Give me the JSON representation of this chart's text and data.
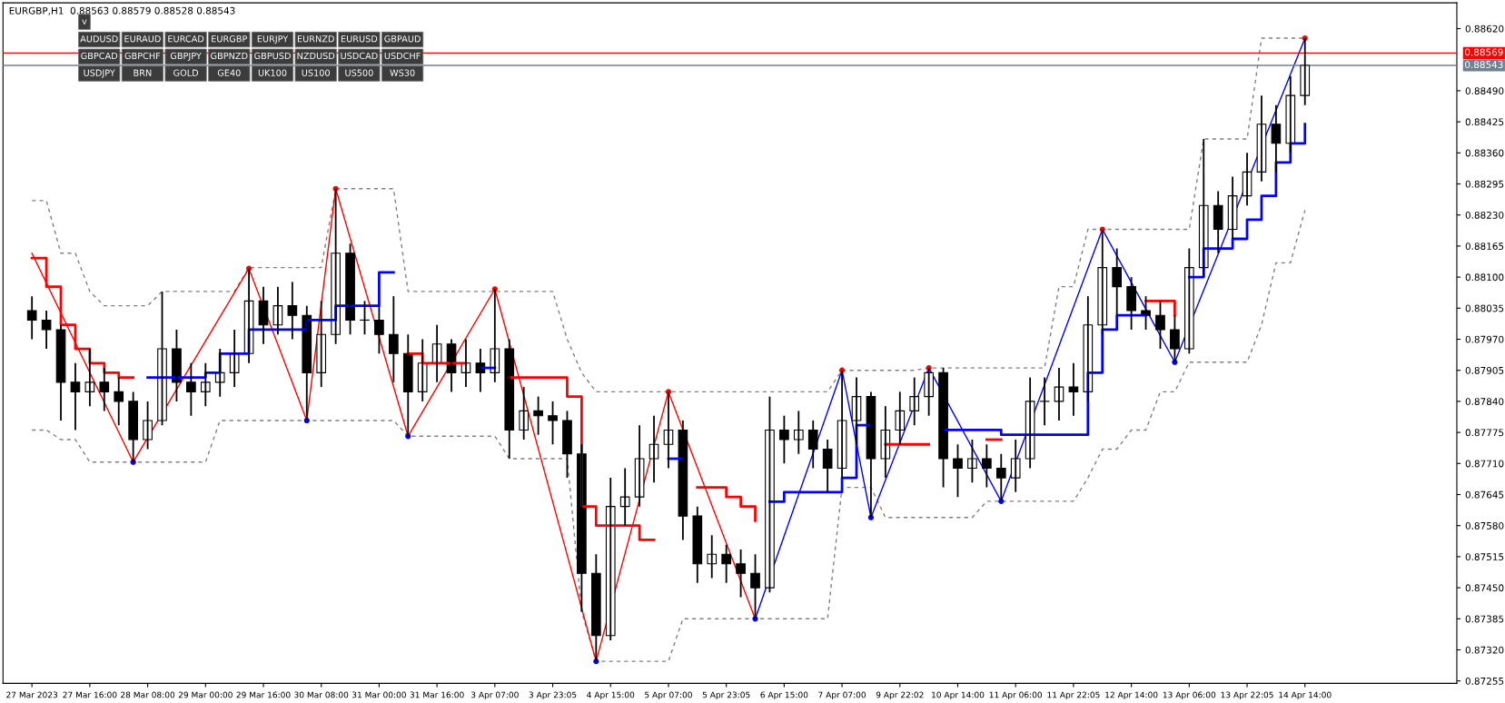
{
  "chart_data": {
    "type": "candlestick",
    "title": "EURGBP,H1  0.88563 0.88579 0.88528 0.88543",
    "categories": [
      "27 Mar 2023",
      null,
      null,
      null,
      "27 Mar 16:00",
      null,
      null,
      null,
      "28 Mar 08:00",
      null,
      null,
      null,
      "29 Mar 00:00",
      null,
      null,
      null,
      "29 Mar 16:00",
      null,
      null,
      null,
      "30 Mar 08:00",
      null,
      null,
      null,
      "31 Mar 00:00",
      null,
      null,
      null,
      "31 Mar 16:00",
      null,
      null,
      null,
      "3 Apr 07:00",
      null,
      null,
      null,
      "3 Apr 23:05",
      null,
      null,
      null,
      "4 Apr 15:00",
      null,
      null,
      null,
      "5 Apr 07:00",
      null,
      null,
      null,
      "5 Apr 23:05",
      null,
      null,
      null,
      "6 Apr 15:00",
      null,
      null,
      null,
      "7 Apr 07:00",
      null,
      null,
      null,
      "9 Apr 22:02",
      null,
      null,
      null,
      "10 Apr 14:00",
      null,
      null,
      null,
      "11 Apr 06:00",
      null,
      null,
      null,
      "11 Apr 22:05",
      null,
      null,
      null,
      "12 Apr 14:00",
      null,
      null,
      null,
      "13 Apr 06:00",
      null,
      null,
      null,
      "13 Apr 22:05",
      null,
      null,
      null,
      "14 Apr 14:00"
    ],
    "ohlc": [
      [
        0.8803,
        0.8806,
        0.8797,
        0.8801
      ],
      [
        0.8801,
        0.8803,
        0.8795,
        0.8799
      ],
      [
        0.8799,
        0.88,
        0.878,
        0.8788
      ],
      [
        0.8788,
        0.8792,
        0.8778,
        0.8786
      ],
      [
        0.8786,
        0.8795,
        0.8783,
        0.8788
      ],
      [
        0.8788,
        0.8791,
        0.8782,
        0.8786
      ],
      [
        0.8786,
        0.8789,
        0.8779,
        0.8784
      ],
      [
        0.8784,
        0.8786,
        0.87713,
        0.8776
      ],
      [
        0.8776,
        0.8784,
        0.8774,
        0.878
      ],
      [
        0.878,
        0.8807,
        0.8779,
        0.8795
      ],
      [
        0.8795,
        0.8799,
        0.8784,
        0.8788
      ],
      [
        0.8788,
        0.8792,
        0.8781,
        0.8786
      ],
      [
        0.8786,
        0.8792,
        0.8783,
        0.8788
      ],
      [
        0.8788,
        0.8795,
        0.8785,
        0.879
      ],
      [
        0.879,
        0.8799,
        0.8787,
        0.8794
      ],
      [
        0.8794,
        0.88118,
        0.8792,
        0.8805
      ],
      [
        0.8805,
        0.8808,
        0.8796,
        0.88
      ],
      [
        0.88,
        0.8808,
        0.8798,
        0.8804
      ],
      [
        0.8804,
        0.8809,
        0.8797,
        0.8802
      ],
      [
        0.8802,
        0.8804,
        0.878,
        0.879
      ],
      [
        0.879,
        0.8805,
        0.8787,
        0.8798
      ],
      [
        0.8798,
        0.88285,
        0.8796,
        0.8815
      ],
      [
        0.8815,
        0.8817,
        0.8798,
        0.8801
      ],
      [
        0.8801,
        0.8805,
        0.8798,
        0.8801
      ],
      [
        0.8801,
        0.8804,
        0.8794,
        0.8798
      ],
      [
        0.8798,
        0.8806,
        0.8788,
        0.8794
      ],
      [
        0.8794,
        0.8798,
        0.87767,
        0.8786
      ],
      [
        0.8786,
        0.8797,
        0.8784,
        0.8792
      ],
      [
        0.8792,
        0.88,
        0.8788,
        0.8796
      ],
      [
        0.8796,
        0.8797,
        0.8786,
        0.879
      ],
      [
        0.879,
        0.8797,
        0.8787,
        0.8792
      ],
      [
        0.8792,
        0.8795,
        0.8786,
        0.879
      ],
      [
        0.879,
        0.88075,
        0.8788,
        0.8795
      ],
      [
        0.8795,
        0.8797,
        0.8772,
        0.8778
      ],
      [
        0.8778,
        0.8787,
        0.8776,
        0.8782
      ],
      [
        0.8782,
        0.8785,
        0.8777,
        0.8781
      ],
      [
        0.8781,
        0.8784,
        0.8775,
        0.878
      ],
      [
        0.878,
        0.8782,
        0.8768,
        0.8773
      ],
      [
        0.8773,
        0.8775,
        0.874,
        0.8748
      ],
      [
        0.8748,
        0.8752,
        0.87296,
        0.8735
      ],
      [
        0.8735,
        0.8768,
        0.8734,
        0.8762
      ],
      [
        0.8762,
        0.877,
        0.8758,
        0.8764
      ],
      [
        0.8764,
        0.8779,
        0.8762,
        0.8772
      ],
      [
        0.8772,
        0.8781,
        0.8767,
        0.8775
      ],
      [
        0.8775,
        0.8786,
        0.877,
        0.8778
      ],
      [
        0.8778,
        0.878,
        0.8755,
        0.876
      ],
      [
        0.876,
        0.8762,
        0.8746,
        0.875
      ],
      [
        0.875,
        0.8756,
        0.8747,
        0.8752
      ],
      [
        0.8752,
        0.8754,
        0.8746,
        0.875
      ],
      [
        0.875,
        0.8753,
        0.8743,
        0.8748
      ],
      [
        0.8748,
        0.8752,
        0.87385,
        0.8745
      ],
      [
        0.8745,
        0.8785,
        0.8744,
        0.8778
      ],
      [
        0.8778,
        0.8781,
        0.8771,
        0.8776
      ],
      [
        0.8776,
        0.8782,
        0.8773,
        0.8778
      ],
      [
        0.8778,
        0.878,
        0.877,
        0.8774
      ],
      [
        0.8774,
        0.8776,
        0.8765,
        0.877
      ],
      [
        0.877,
        0.87905,
        0.8768,
        0.878
      ],
      [
        0.878,
        0.8789,
        0.8775,
        0.8785
      ],
      [
        0.8785,
        0.8786,
        0.87597,
        0.8772
      ],
      [
        0.8772,
        0.8783,
        0.8768,
        0.8778
      ],
      [
        0.8778,
        0.8786,
        0.8775,
        0.8782
      ],
      [
        0.8782,
        0.8789,
        0.8779,
        0.8785
      ],
      [
        0.8785,
        0.8791,
        0.8781,
        0.879
      ],
      [
        0.879,
        0.8791,
        0.8766,
        0.8772
      ],
      [
        0.8772,
        0.8775,
        0.8764,
        0.877
      ],
      [
        0.877,
        0.8776,
        0.8767,
        0.8772
      ],
      [
        0.8772,
        0.8775,
        0.8766,
        0.877
      ],
      [
        0.877,
        0.8773,
        0.87631,
        0.8768
      ],
      [
        0.8768,
        0.8776,
        0.8765,
        0.8772
      ],
      [
        0.8772,
        0.8789,
        0.877,
        0.8784
      ],
      [
        0.8784,
        0.8789,
        0.8779,
        0.8784
      ],
      [
        0.8784,
        0.8791,
        0.878,
        0.8787
      ],
      [
        0.8787,
        0.8792,
        0.8781,
        0.8786
      ],
      [
        0.8786,
        0.8806,
        0.8784,
        0.88
      ],
      [
        0.88,
        0.882,
        0.8798,
        0.8812
      ],
      [
        0.8812,
        0.8816,
        0.8802,
        0.8808
      ],
      [
        0.8808,
        0.881,
        0.8799,
        0.8803
      ],
      [
        0.8803,
        0.8806,
        0.8799,
        0.8802
      ],
      [
        0.8802,
        0.8805,
        0.8795,
        0.8799
      ],
      [
        0.8799,
        0.8802,
        0.87922,
        0.8795
      ],
      [
        0.8795,
        0.8816,
        0.8794,
        0.8812
      ],
      [
        0.8812,
        0.88389,
        0.881,
        0.8825
      ],
      [
        0.8825,
        0.8828,
        0.8815,
        0.882
      ],
      [
        0.882,
        0.8831,
        0.8818,
        0.8827
      ],
      [
        0.8827,
        0.8836,
        0.8825,
        0.8832
      ],
      [
        0.8832,
        0.8848,
        0.883,
        0.8842
      ],
      [
        0.8842,
        0.8846,
        0.8832,
        0.8838
      ],
      [
        0.8838,
        0.8852,
        0.8836,
        0.8848
      ],
      [
        0.8848,
        0.886,
        0.8846,
        0.88543
      ]
    ],
    "series": [
      {
        "type": "step",
        "color": "#ff0000",
        "values": [
          0.8814,
          0.8808,
          0.88,
          0.8795,
          0.8792,
          0.879,
          0.8789,
          0.8789,
          null,
          null,
          null,
          null,
          null,
          null,
          null,
          null,
          null,
          null,
          null,
          null,
          null,
          null,
          null,
          null,
          null,
          null,
          0.8794,
          0.8792,
          0.8792,
          0.8792,
          0.8792,
          null,
          null,
          0.8789,
          0.8789,
          0.8789,
          0.8789,
          0.8785,
          0.8762,
          0.8758,
          0.8758,
          0.8758,
          0.8755,
          0.8755,
          null,
          null,
          0.8766,
          0.8766,
          0.8764,
          0.8762,
          0.8759,
          null,
          null,
          null,
          null,
          null,
          null,
          null,
          null,
          0.8775,
          0.8775,
          0.8775,
          0.8775,
          null,
          null,
          null,
          0.8776,
          0.8776,
          null,
          null,
          null,
          null,
          null,
          null,
          null,
          null,
          null,
          0.8805,
          0.8805,
          0.8802,
          null,
          null,
          null,
          null,
          null,
          null,
          null,
          null,
          null
        ]
      },
      {
        "type": "step",
        "color": "#0000ff",
        "values": [
          null,
          null,
          null,
          null,
          null,
          null,
          null,
          null,
          0.8789,
          0.8789,
          0.8789,
          0.8789,
          0.879,
          0.8794,
          0.8794,
          0.8799,
          0.8799,
          0.8799,
          0.8799,
          0.8801,
          0.8801,
          0.8804,
          0.8804,
          0.8804,
          0.8811,
          0.8811,
          null,
          null,
          null,
          null,
          null,
          0.8791,
          0.8791,
          null,
          null,
          null,
          null,
          null,
          null,
          null,
          null,
          null,
          null,
          null,
          0.8772,
          0.8772,
          null,
          null,
          null,
          null,
          null,
          0.8763,
          0.8765,
          0.8765,
          0.8765,
          0.8765,
          0.8768,
          0.8779,
          0.8779,
          null,
          null,
          null,
          null,
          0.8778,
          0.8778,
          0.8778,
          0.8778,
          0.8777,
          0.8777,
          0.8777,
          0.8777,
          0.8777,
          0.8777,
          0.879,
          0.8799,
          0.8802,
          0.8802,
          0.8802,
          null,
          null,
          0.881,
          0.8816,
          0.8816,
          0.8818,
          0.8822,
          0.8827,
          0.8834,
          0.8838,
          0.8842
        ]
      },
      {
        "type": "line",
        "line_style": "dashed",
        "color": "#808080",
        "values": [
          0.8826,
          0.8826,
          0.8815,
          0.8815,
          0.8807,
          0.8804,
          0.8804,
          0.8804,
          0.8804,
          0.8807,
          0.8807,
          0.8807,
          0.8807,
          0.8807,
          0.8807,
          0.8812,
          0.8812,
          0.8812,
          0.8812,
          0.8812,
          0.8812,
          0.88285,
          0.88285,
          0.88285,
          0.88285,
          0.88285,
          0.8807,
          0.8807,
          0.8807,
          0.8807,
          0.8807,
          0.8807,
          0.8807,
          0.8807,
          0.8807,
          0.8807,
          0.8807,
          0.8797,
          0.879,
          0.8786,
          0.8786,
          0.8786,
          0.8786,
          0.8786,
          0.8786,
          0.8786,
          0.8786,
          0.8786,
          0.8786,
          0.8786,
          0.8786,
          0.8786,
          0.8786,
          0.8786,
          0.8786,
          0.8786,
          0.87905,
          0.87905,
          0.87905,
          0.87905,
          0.87905,
          0.87905,
          0.8791,
          0.8791,
          0.8791,
          0.8791,
          0.8791,
          0.8791,
          0.8791,
          0.8791,
          0.8791,
          0.8808,
          0.8808,
          0.882,
          0.882,
          0.882,
          0.882,
          0.882,
          0.882,
          0.882,
          0.882,
          0.88389,
          0.88389,
          0.88389,
          0.88389,
          0.886,
          0.886,
          0.886,
          0.886
        ]
      },
      {
        "type": "line",
        "line_style": "dashed",
        "color": "#808080",
        "values": [
          0.8778,
          0.8778,
          0.8776,
          0.8776,
          0.87713,
          0.87713,
          0.87713,
          0.87713,
          0.87713,
          0.87713,
          0.87713,
          0.87713,
          0.87713,
          0.878,
          0.878,
          0.878,
          0.878,
          0.878,
          0.878,
          0.878,
          0.878,
          0.878,
          0.878,
          0.878,
          0.878,
          0.878,
          0.87767,
          0.87767,
          0.87767,
          0.87767,
          0.87767,
          0.87767,
          0.87767,
          0.8772,
          0.8772,
          0.8772,
          0.8772,
          0.8772,
          0.874,
          0.87296,
          0.87296,
          0.87296,
          0.87296,
          0.87296,
          0.87296,
          0.87385,
          0.87385,
          0.87385,
          0.87385,
          0.87385,
          0.87385,
          0.87385,
          0.87385,
          0.87385,
          0.87385,
          0.87385,
          0.8766,
          0.8766,
          0.8766,
          0.87597,
          0.87597,
          0.87597,
          0.87597,
          0.87597,
          0.87597,
          0.87597,
          0.87631,
          0.87631,
          0.87631,
          0.87631,
          0.87631,
          0.87631,
          0.87631,
          0.8768,
          0.8774,
          0.8774,
          0.8778,
          0.8778,
          0.8786,
          0.8786,
          0.87922,
          0.87922,
          0.87922,
          0.87922,
          0.87922,
          0.88,
          0.8813,
          0.8813,
          0.8824
        ]
      },
      {
        "type": "line",
        "color": "#ff0000",
        "values": [
          0.8815,
          null,
          null,
          null,
          null,
          null,
          null,
          0.87713,
          null,
          null,
          null,
          null,
          null,
          null,
          null,
          0.88118,
          null,
          null,
          null,
          0.878,
          null,
          0.88285,
          null,
          null,
          null,
          null,
          0.87767,
          null,
          null,
          null,
          null,
          null,
          0.88075,
          null,
          null,
          null,
          null,
          null,
          null,
          0.87296,
          null,
          null,
          null,
          null,
          0.8786,
          null,
          null,
          null,
          null,
          null,
          0.87385,
          null,
          null,
          null,
          null,
          null,
          null,
          null,
          null,
          null,
          null,
          null,
          null,
          null,
          null,
          null,
          null,
          null,
          null,
          null,
          null,
          null,
          null,
          null,
          null,
          null,
          null,
          null,
          null,
          null,
          null,
          null,
          null,
          null,
          null,
          null,
          null,
          null,
          null
        ]
      },
      {
        "type": "line",
        "color": "#0000ff",
        "values": [
          null,
          null,
          null,
          null,
          null,
          null,
          null,
          null,
          null,
          null,
          null,
          null,
          null,
          null,
          null,
          null,
          null,
          null,
          null,
          null,
          null,
          null,
          null,
          null,
          null,
          null,
          null,
          null,
          null,
          null,
          null,
          null,
          null,
          null,
          null,
          null,
          null,
          null,
          null,
          null,
          null,
          null,
          null,
          null,
          null,
          null,
          null,
          null,
          null,
          null,
          0.87385,
          null,
          null,
          null,
          null,
          null,
          0.87905,
          null,
          0.87597,
          null,
          null,
          null,
          0.8791,
          null,
          null,
          null,
          null,
          0.87631,
          null,
          null,
          null,
          null,
          null,
          null,
          0.882,
          null,
          null,
          null,
          null,
          0.87922,
          null,
          null,
          null,
          null,
          null,
          null,
          null,
          null,
          0.886
        ]
      },
      {
        "type": "scatter",
        "marker": "circle",
        "color": "#ff0000",
        "values": [
          null,
          null,
          null,
          null,
          null,
          null,
          null,
          null,
          null,
          null,
          null,
          null,
          null,
          null,
          null,
          0.88118,
          null,
          null,
          null,
          null,
          null,
          0.88285,
          null,
          null,
          null,
          null,
          null,
          null,
          null,
          null,
          null,
          null,
          0.88075,
          null,
          null,
          null,
          null,
          null,
          null,
          null,
          null,
          null,
          null,
          null,
          0.8786,
          null,
          null,
          null,
          null,
          null,
          null,
          null,
          null,
          null,
          null,
          null,
          0.87905,
          null,
          null,
          null,
          null,
          null,
          0.8791,
          null,
          null,
          null,
          null,
          null,
          null,
          null,
          null,
          null,
          null,
          null,
          0.882,
          null,
          null,
          null,
          null,
          null,
          null,
          null,
          null,
          null,
          null,
          null,
          null,
          null,
          0.886
        ]
      },
      {
        "type": "scatter",
        "marker": "circle",
        "color": "#0000ff",
        "values": [
          null,
          null,
          null,
          null,
          null,
          null,
          null,
          0.87713,
          null,
          null,
          null,
          null,
          null,
          null,
          null,
          null,
          null,
          null,
          null,
          0.878,
          null,
          null,
          null,
          null,
          null,
          null,
          0.87767,
          null,
          null,
          null,
          null,
          null,
          null,
          null,
          null,
          null,
          null,
          null,
          null,
          0.87296,
          null,
          null,
          null,
          null,
          null,
          null,
          null,
          null,
          null,
          null,
          0.87385,
          null,
          null,
          null,
          null,
          null,
          null,
          null,
          0.87597,
          null,
          null,
          null,
          null,
          null,
          null,
          null,
          null,
          0.87631,
          null,
          null,
          null,
          null,
          null,
          null,
          null,
          null,
          null,
          null,
          null,
          0.87922,
          null,
          null,
          null,
          null,
          null,
          null,
          null,
          null,
          null
        ]
      }
    ],
    "ylim": [
      0.8725,
      0.88674
    ],
    "yticks": [
      {
        "value": 0.8862,
        "label": "0.88620"
      },
      {
        "value": 0.8849,
        "label": "0.88490"
      },
      {
        "value": 0.88425,
        "label": "0.88425"
      },
      {
        "value": 0.8836,
        "label": "0.88360"
      },
      {
        "value": 0.88295,
        "label": "0.88295"
      },
      {
        "value": 0.8823,
        "label": "0.88230"
      },
      {
        "value": 0.88165,
        "label": "0.88165"
      },
      {
        "value": 0.881,
        "label": "0.88100"
      },
      {
        "value": 0.88035,
        "label": "0.88035"
      },
      {
        "value": 0.8797,
        "label": "0.87970"
      },
      {
        "value": 0.87905,
        "label": "0.87905"
      },
      {
        "value": 0.8784,
        "label": "0.87840"
      },
      {
        "value": 0.87775,
        "label": "0.87775"
      },
      {
        "value": 0.8771,
        "label": "0.87710"
      },
      {
        "value": 0.87645,
        "label": "0.87645"
      },
      {
        "value": 0.8758,
        "label": "0.87580"
      },
      {
        "value": 0.87515,
        "label": "0.87515"
      },
      {
        "value": 0.8745,
        "label": "0.87450"
      },
      {
        "value": 0.87385,
        "label": "0.87385"
      },
      {
        "value": 0.8732,
        "label": "0.87320"
      },
      {
        "value": 0.87255,
        "label": "0.87255"
      }
    ],
    "ref_lines": [
      {
        "axis": "y",
        "value": 0.88569,
        "label": "0.88569",
        "color": "#ff0000"
      },
      {
        "axis": "y",
        "value": 0.88543,
        "label": "0.88543",
        "color": "#708090"
      }
    ],
    "annotations": [
      "v",
      "AUDUSD",
      "EURAUD",
      "EURCAD",
      "EURGBP",
      "EURJPY",
      "EURNZD",
      "EURUSD",
      "GBPAUD",
      "GBPCAD",
      "GBPCHF",
      "GBPJPY",
      "GBPNZD",
      "GBPUSD",
      "NZDUSD",
      "USDCAD",
      "USDCHF",
      "USDJPY",
      "BRN",
      "GOLD",
      "GE40",
      "UK100",
      "US100",
      "US500",
      "WS30"
    ],
    "grid": false,
    "legend": false
  }
}
